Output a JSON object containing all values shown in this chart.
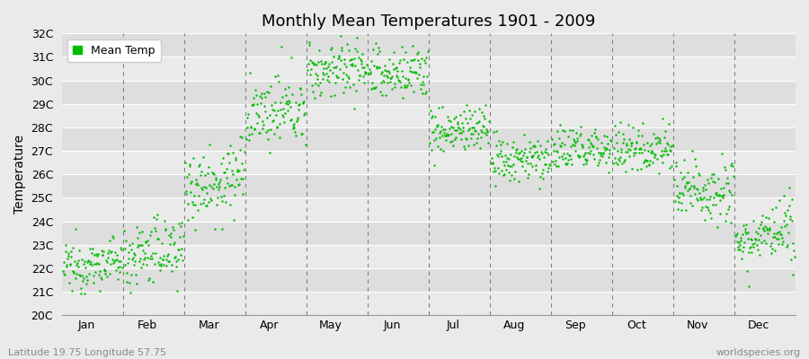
{
  "title": "Monthly Mean Temperatures 1901 - 2009",
  "ylabel": "Temperature",
  "xlabel_labels": [
    "Jan",
    "Feb",
    "Mar",
    "Apr",
    "May",
    "Jun",
    "Jul",
    "Aug",
    "Sep",
    "Oct",
    "Nov",
    "Dec"
  ],
  "ytick_labels": [
    "20C",
    "21C",
    "22C",
    "23C",
    "24C",
    "25C",
    "26C",
    "27C",
    "28C",
    "29C",
    "30C",
    "31C",
    "32C"
  ],
  "ytick_values": [
    20,
    21,
    22,
    23,
    24,
    25,
    26,
    27,
    28,
    29,
    30,
    31,
    32
  ],
  "ylim": [
    20,
    32
  ],
  "dot_color": "#00BB00",
  "dot_size": 3,
  "bg_color": "#EAEAEA",
  "grid_color": "#FFFFFF",
  "dashed_line_color": "#808080",
  "bottom_left_text": "Latitude 19.75 Longitude 57.75",
  "bottom_right_text": "worldspecies.org",
  "legend_label": "Mean Temp",
  "n_years": 109,
  "start_year": 1901,
  "monthly_means": [
    22.0,
    22.5,
    25.5,
    28.5,
    30.4,
    30.2,
    27.8,
    26.5,
    27.0,
    27.0,
    25.2,
    23.2
  ],
  "monthly_stds": [
    0.5,
    0.7,
    0.8,
    0.7,
    0.6,
    0.6,
    0.5,
    0.5,
    0.5,
    0.5,
    0.7,
    0.6
  ],
  "monthly_trends": [
    0.003,
    0.004,
    0.004,
    0.003,
    0.002,
    0.002,
    0.002,
    0.002,
    0.002,
    0.002,
    0.003,
    0.003
  ]
}
